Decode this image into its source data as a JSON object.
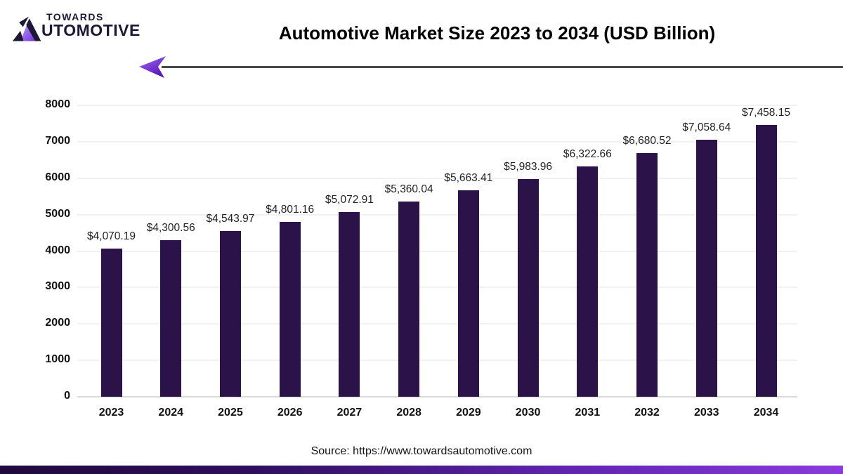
{
  "logo": {
    "line1": "TOWARDS",
    "line2_rest": "UTOMOTIVE"
  },
  "header": {
    "title": "Automotive Market Size 2023 to 2034 (USD Billion)"
  },
  "chart_data": {
    "type": "bar",
    "title": "Automotive Market Size 2023 to 2034 (USD Billion)",
    "categories": [
      "2023",
      "2024",
      "2025",
      "2026",
      "2027",
      "2028",
      "2029",
      "2030",
      "2031",
      "2032",
      "2033",
      "2034"
    ],
    "values": [
      4070.19,
      4300.56,
      4543.97,
      4801.16,
      5072.91,
      5360.04,
      5663.41,
      5983.96,
      6322.66,
      6680.52,
      7058.64,
      7458.15
    ],
    "value_labels": [
      "$4,070.19",
      "$4,300.56",
      "$4,543.97",
      "$4,801.16",
      "$5,072.91",
      "$5,360.04",
      "$5,663.41",
      "$5,983.96",
      "$6,322.66",
      "$6,680.52",
      "$7,058.64",
      "$7,458.15"
    ],
    "unit": "USD Billion",
    "xlabel": "",
    "ylabel": "",
    "ylim": [
      0,
      8000
    ],
    "yticks": [
      0,
      1000,
      2000,
      3000,
      4000,
      5000,
      6000,
      7000,
      8000
    ],
    "grid": true,
    "legend": false,
    "bar_color": "#2b1248"
  },
  "footer": {
    "source": "Source: https://www.towardsautomotive.com"
  },
  "colors": {
    "bar": "#2b1248",
    "logo_text": "#1c1836",
    "arrow_line": "#4a4a4a",
    "accent_gradient_start": "#20093d",
    "accent_gradient_end": "#8a3ade"
  }
}
